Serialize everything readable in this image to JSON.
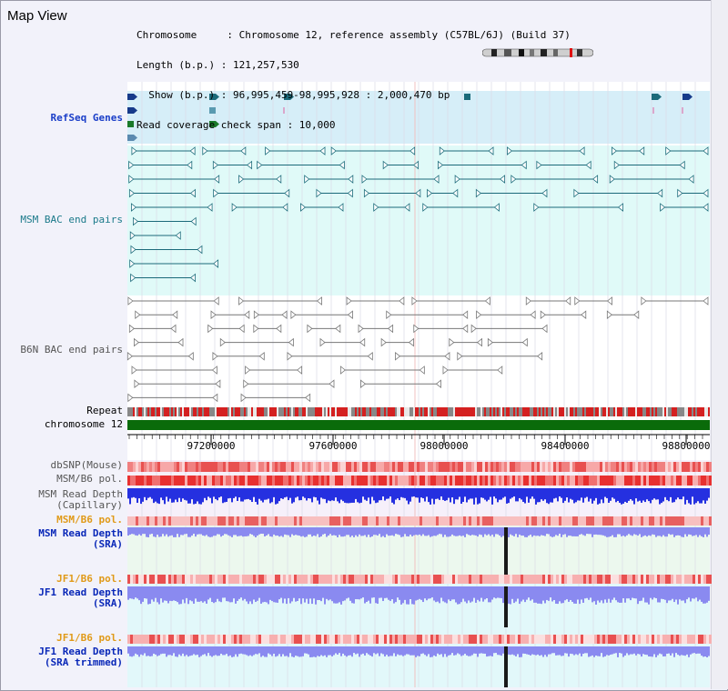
{
  "view": {
    "title": "Map View",
    "info_lines": [
      "Chromosome     : Chromosome 12, reference assembly (C57BL/6J) (Build 37)",
      "Length (b.p.) : 121,257,530",
      "  Show (b.p.) : 96,995,459-98,995,928 : 2,000,470 bp",
      "Read coverage check span : 10,000"
    ]
  },
  "tracks": {
    "refseq": "RefSeq Genes",
    "msm_bac": "MSM BAC end pairs",
    "b6n_bac": "B6N BAC end pairs",
    "repeat": "Repeat",
    "chromosome": "chromosome 12",
    "dbsnp": "dbSNP(Mouse)",
    "msm_b6_pol_1": "MSM/B6 pol.",
    "msm_depth_cap": "MSM Read Depth\n(Capillary)",
    "msm_b6_pol_2": "MSM/B6 pol.",
    "msm_depth_sra": "MSM Read Depth\n(SRA)",
    "jf1_b6_pol_1": "JF1/B6 pol.",
    "jf1_depth_sra": "JF1 Read Depth\n(SRA)",
    "jf1_b6_pol_2": "JF1/B6 pol.",
    "jf1_depth_trim": "JF1 Read Depth\n(SRA trimmed)"
  },
  "axis": {
    "ticks": [
      "97200000",
      "97600000",
      "98000000",
      "98400000",
      "98800000"
    ]
  },
  "colors": {
    "refseq_bg": "#d6eef8",
    "bac_bg": "#e0faf8",
    "chromosome": "#0a6b0a",
    "msm_line": "#1b6a7a",
    "b6n_line": "#777777",
    "depth_blue": "#2530e0",
    "depth_sra": "#8a8af0",
    "marker": "#1a1a1a"
  }
}
